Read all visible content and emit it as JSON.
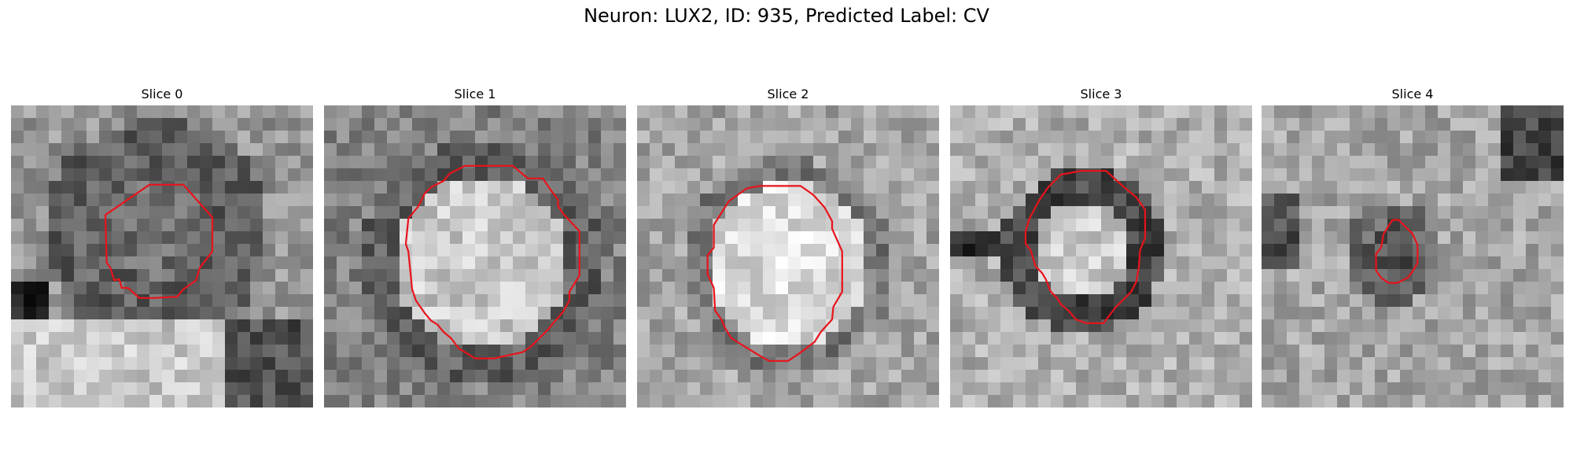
{
  "figure": {
    "title": "Neuron: LUX2, ID: 935, Predicted Label: CV"
  },
  "contour_color": "#e8131b",
  "colormap": "grayscale",
  "panels": [
    {
      "title": "Slice 0",
      "contour": [
        [
          11,
          6.3
        ],
        [
          13.7,
          6.3
        ],
        [
          16,
          8.9
        ],
        [
          16,
          11.6
        ],
        [
          15,
          12.9
        ],
        [
          14.7,
          13.9
        ],
        [
          13.7,
          14.6
        ],
        [
          13.2,
          15.2
        ],
        [
          11.3,
          15.3
        ],
        [
          10.2,
          15.3
        ],
        [
          9.3,
          14.5
        ],
        [
          8.8,
          14.5
        ],
        [
          8.6,
          13.8
        ],
        [
          8.2,
          13.9
        ],
        [
          7.9,
          12.9
        ],
        [
          7.6,
          12.5
        ],
        [
          7.5,
          8.7
        ]
      ]
    },
    {
      "title": "Slice 1",
      "contour": [
        [
          11.2,
          4.8
        ],
        [
          15,
          4.8
        ],
        [
          16.2,
          5.8
        ],
        [
          17.4,
          5.8
        ],
        [
          18,
          6.7
        ],
        [
          18.6,
          7.5
        ],
        [
          18.6,
          8
        ],
        [
          19,
          8.6
        ],
        [
          20.3,
          10
        ],
        [
          20.3,
          13.5
        ],
        [
          19.5,
          14.8
        ],
        [
          19.5,
          15.5
        ],
        [
          19,
          16.4
        ],
        [
          18.3,
          17.2
        ],
        [
          17.8,
          17.8
        ],
        [
          17,
          18.6
        ],
        [
          16.5,
          19.1
        ],
        [
          15.8,
          19.6
        ],
        [
          13.5,
          20.1
        ],
        [
          12,
          20.1
        ],
        [
          10.7,
          19.3
        ],
        [
          10.1,
          18.5
        ],
        [
          9.5,
          18
        ],
        [
          9,
          17.4
        ],
        [
          8.5,
          17.1
        ],
        [
          8,
          16.5
        ],
        [
          7.3,
          15.5
        ],
        [
          7,
          14.6
        ],
        [
          6.7,
          11.6
        ],
        [
          6.5,
          11
        ],
        [
          6.7,
          9
        ],
        [
          7.5,
          8
        ],
        [
          8,
          7
        ],
        [
          8.5,
          6.5
        ],
        [
          9.5,
          6
        ],
        [
          10,
          5.4
        ]
      ]
    },
    {
      "title": "Slice 2",
      "contour": [
        [
          11,
          6.4
        ],
        [
          13,
          6.4
        ],
        [
          14,
          7.1
        ],
        [
          14.9,
          8.1
        ],
        [
          15.5,
          9.2
        ],
        [
          15.5,
          9.8
        ],
        [
          16.3,
          11.6
        ],
        [
          16.3,
          14.8
        ],
        [
          15.6,
          16
        ],
        [
          15.5,
          17
        ],
        [
          14.6,
          18
        ],
        [
          14.1,
          18.8
        ],
        [
          12.9,
          19.7
        ],
        [
          12,
          20.3
        ],
        [
          10.5,
          20.3
        ],
        [
          9.6,
          19.8
        ],
        [
          8.3,
          19
        ],
        [
          7.5,
          18.5
        ],
        [
          7,
          17.7
        ],
        [
          6.7,
          17
        ],
        [
          6.2,
          16.3
        ],
        [
          6.1,
          14.5
        ],
        [
          5.6,
          13.4
        ],
        [
          5.6,
          11.9
        ],
        [
          6.1,
          11.3
        ],
        [
          6.1,
          9.5
        ],
        [
          7.3,
          7.6
        ],
        [
          8.7,
          6.6
        ],
        [
          9.7,
          6.4
        ]
      ]
    },
    {
      "title": "Slice 3",
      "contour": [
        [
          10.8,
          5.2
        ],
        [
          12.4,
          5.2
        ],
        [
          13.6,
          6.3
        ],
        [
          14.8,
          7.3
        ],
        [
          15.5,
          8.3
        ],
        [
          15.5,
          10.5
        ],
        [
          15.1,
          11.5
        ],
        [
          15,
          12.8
        ],
        [
          14.8,
          14
        ],
        [
          14.4,
          14.8
        ],
        [
          13.7,
          15.5
        ],
        [
          13.1,
          16.1
        ],
        [
          12.2,
          17.3
        ],
        [
          10.8,
          17.3
        ],
        [
          10,
          17
        ],
        [
          9.4,
          16.3
        ],
        [
          8.8,
          15.8
        ],
        [
          8.5,
          15.3
        ],
        [
          8,
          14.8
        ],
        [
          7.6,
          13.8
        ],
        [
          7.3,
          13.3
        ],
        [
          6.8,
          12.8
        ],
        [
          6.4,
          11.5
        ],
        [
          6,
          11
        ],
        [
          6,
          10
        ],
        [
          6.3,
          9
        ],
        [
          7.1,
          7.5
        ],
        [
          7.8,
          6.5
        ],
        [
          8.8,
          5.5
        ],
        [
          10.4,
          5.2
        ]
      ]
    },
    {
      "title": "Slice 4",
      "contour": [
        [
          10.4,
          9.1
        ],
        [
          10.9,
          9.1
        ],
        [
          12,
          10.2
        ],
        [
          12.4,
          11.1
        ],
        [
          12.4,
          12.5
        ],
        [
          12,
          13.2
        ],
        [
          11.6,
          13.7
        ],
        [
          10.8,
          14.1
        ],
        [
          10.1,
          14.1
        ],
        [
          9.5,
          13.7
        ],
        [
          9.1,
          13.1
        ],
        [
          9.1,
          11.8
        ],
        [
          9.5,
          11.3
        ],
        [
          9.7,
          10.2
        ]
      ]
    }
  ]
}
